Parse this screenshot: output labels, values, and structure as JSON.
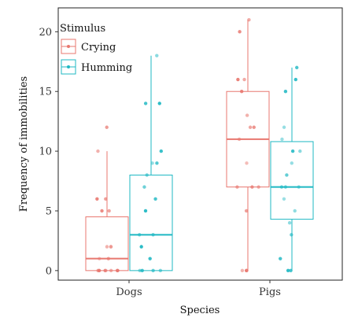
{
  "chart_data": {
    "type": "box",
    "xlabel": "Species",
    "ylabel": "Frequency of immobilities",
    "categories": [
      "Dogs",
      "Pigs"
    ],
    "ylim": [
      -0.8,
      22
    ],
    "yticks": [
      0,
      5,
      10,
      15,
      20
    ],
    "legend": {
      "title": "Stimulus",
      "position": "top-left"
    },
    "series": [
      {
        "name": "Crying",
        "color": "#E8776F",
        "boxes": [
          {
            "category": "Dogs",
            "min": 0,
            "q1": 0,
            "median": 1,
            "q3": 4.5,
            "max": 10,
            "points": [
              12,
              10,
              6,
              6,
              5,
              5,
              2,
              2,
              2,
              1,
              1,
              0,
              0,
              0,
              0,
              0,
              0,
              0
            ]
          },
          {
            "category": "Pigs",
            "min": 0,
            "q1": 7,
            "median": 11,
            "q3": 15,
            "max": 21,
            "points": [
              21,
              20,
              16,
              16,
              15,
              13,
              12,
              12,
              11,
              9,
              7,
              7,
              7,
              5,
              0,
              0,
              0
            ]
          }
        ]
      },
      {
        "name": "Humming",
        "color": "#1FB8C3",
        "boxes": [
          {
            "category": "Dogs",
            "min": 0,
            "q1": 0,
            "median": 3,
            "q3": 8,
            "max": 18,
            "points": [
              18,
              14,
              14,
              10,
              9,
              9,
              8,
              7,
              6,
              5,
              3,
              3,
              2,
              1,
              0,
              0,
              0,
              0
            ]
          },
          {
            "category": "Pigs",
            "min": 0,
            "q1": 4.3,
            "median": 7,
            "q3": 10.8,
            "max": 17,
            "points": [
              17,
              16,
              15,
              12,
              11,
              10,
              10,
              9,
              8,
              7,
              7,
              7,
              6,
              5,
              4,
              3,
              1,
              0,
              0
            ]
          }
        ]
      }
    ]
  }
}
